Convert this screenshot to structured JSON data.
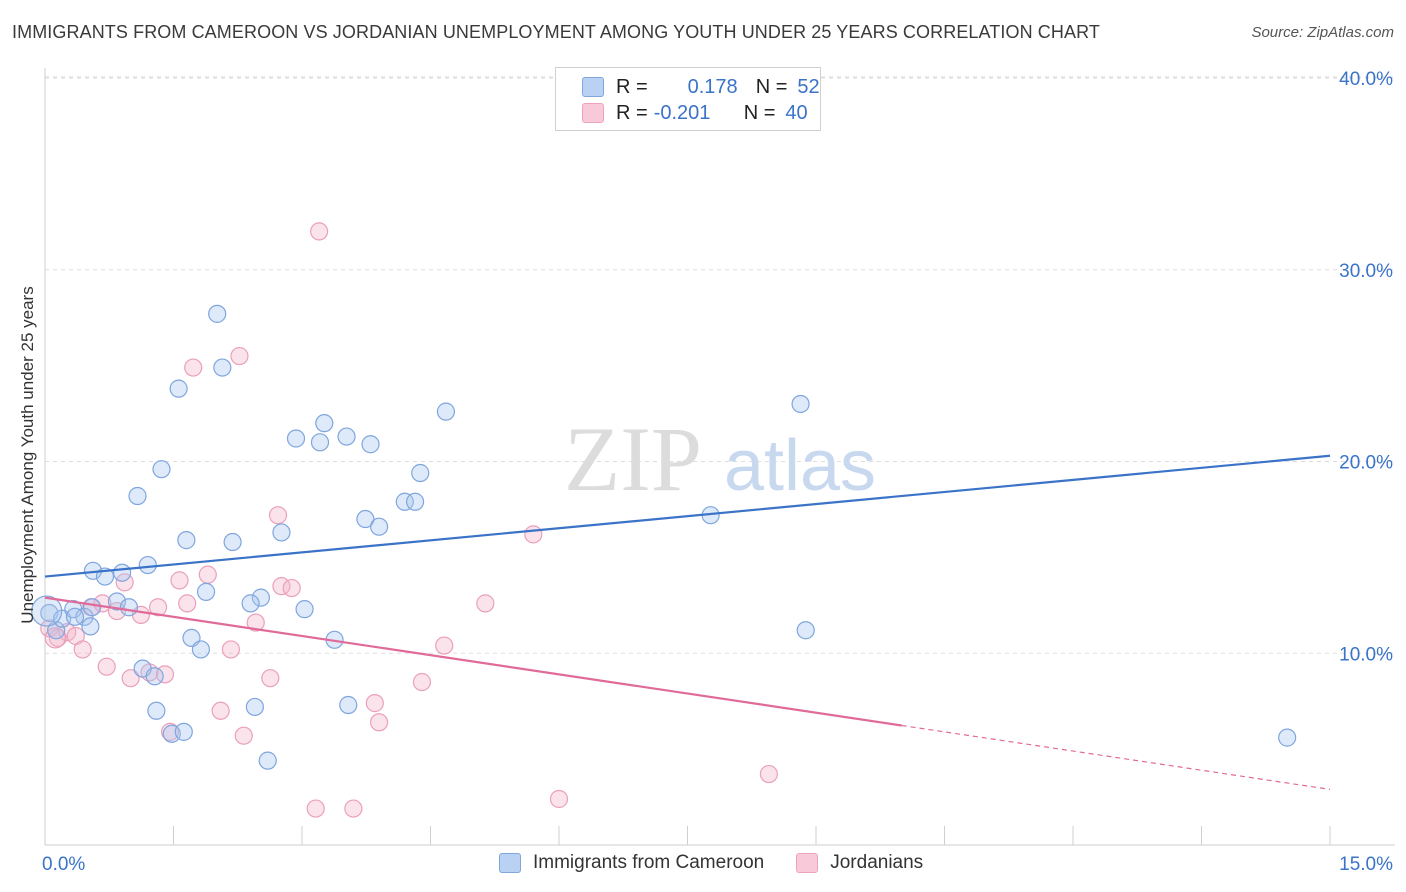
{
  "header": {
    "title": "IMMIGRANTS FROM CAMEROON VS JORDANIAN UNEMPLOYMENT AMONG YOUTH UNDER 25 YEARS CORRELATION CHART",
    "source": "Source: ZipAtlas.com"
  },
  "watermark": {
    "zip": "ZIP",
    "atlas": "atlas"
  },
  "legend": {
    "rows": [
      {
        "r_label": "R =",
        "r_value": "0.178",
        "n_label": "N =",
        "n_value": "52"
      },
      {
        "r_label": "R =",
        "r_value": "-0.201",
        "n_label": "N =",
        "n_value": "40"
      }
    ]
  },
  "bottom_legend": {
    "series1": "Immigrants from Cameroon",
    "series2": "Jordanians"
  },
  "chart_data": {
    "type": "scatter",
    "title": "IMMIGRANTS FROM CAMEROON VS JORDANIAN UNEMPLOYMENT AMONG YOUTH UNDER 25 YEARS CORRELATION CHART",
    "xlabel": "",
    "ylabel": "Unemployment Among Youth under 25 years",
    "xlim": [
      0,
      15
    ],
    "ylim": [
      0,
      40
    ],
    "x_tick_labels": [
      "0.0%",
      "15.0%"
    ],
    "y_tick_labels": [
      "10.0%",
      "20.0%",
      "30.0%",
      "40.0%"
    ],
    "y_ticks": [
      10,
      20,
      30,
      40
    ],
    "grid": true,
    "colors": {
      "blue": "#3a73c8",
      "blue_fill": "#a9c6ee",
      "pink": "#e06a98",
      "pink_fill": "#f4b6cb"
    },
    "series": [
      {
        "name": "Immigrants from Cameroon",
        "color": "#3a73c8",
        "R": 0.178,
        "N": 52,
        "trend": {
          "x": [
            0,
            15
          ],
          "y": [
            14.0,
            20.3
          ]
        },
        "points": [
          [
            0.05,
            12.1
          ],
          [
            0.13,
            11.2
          ],
          [
            0.2,
            11.8
          ],
          [
            0.33,
            12.3
          ],
          [
            0.46,
            11.9
          ],
          [
            0.53,
            11.4
          ],
          [
            0.56,
            14.3
          ],
          [
            0.7,
            14.0
          ],
          [
            0.84,
            12.7
          ],
          [
            0.9,
            14.2
          ],
          [
            0.98,
            12.4
          ],
          [
            1.08,
            18.2
          ],
          [
            1.2,
            14.6
          ],
          [
            1.14,
            9.2
          ],
          [
            1.28,
            8.8
          ],
          [
            1.3,
            7.0
          ],
          [
            1.36,
            19.6
          ],
          [
            1.48,
            5.8
          ],
          [
            1.56,
            23.8
          ],
          [
            1.65,
            15.9
          ],
          [
            1.71,
            10.8
          ],
          [
            1.82,
            10.2
          ],
          [
            1.88,
            13.2
          ],
          [
            2.01,
            27.7
          ],
          [
            2.07,
            24.9
          ],
          [
            2.19,
            15.8
          ],
          [
            2.45,
            7.2
          ],
          [
            2.52,
            12.9
          ],
          [
            2.6,
            4.4
          ],
          [
            2.76,
            16.3
          ],
          [
            2.93,
            21.2
          ],
          [
            3.03,
            12.3
          ],
          [
            3.21,
            21.0
          ],
          [
            3.26,
            22.0
          ],
          [
            3.38,
            10.7
          ],
          [
            3.52,
            21.3
          ],
          [
            3.54,
            7.3
          ],
          [
            3.74,
            17.0
          ],
          [
            3.8,
            20.9
          ],
          [
            3.9,
            16.6
          ],
          [
            4.2,
            17.9
          ],
          [
            4.32,
            17.9
          ],
          [
            4.38,
            19.4
          ],
          [
            4.68,
            22.6
          ],
          [
            7.77,
            17.2
          ],
          [
            8.82,
            23.0
          ],
          [
            8.88,
            11.2
          ],
          [
            14.5,
            5.6
          ]
        ]
      },
      {
        "name": "Jordanians",
        "color": "#e06a98",
        "R": -0.201,
        "N": 40,
        "trend": {
          "x": [
            0,
            15
          ],
          "y": [
            12.9,
            2.9
          ],
          "solid_until_x": 10.0
        },
        "points": [
          [
            0.05,
            11.3
          ],
          [
            0.15,
            10.8
          ],
          [
            0.26,
            11.1
          ],
          [
            0.36,
            10.9
          ],
          [
            0.44,
            10.2
          ],
          [
            0.54,
            12.4
          ],
          [
            0.67,
            12.6
          ],
          [
            0.72,
            9.3
          ],
          [
            0.84,
            12.2
          ],
          [
            0.93,
            13.7
          ],
          [
            1.0,
            8.7
          ],
          [
            1.12,
            12.0
          ],
          [
            1.22,
            9.0
          ],
          [
            1.32,
            12.4
          ],
          [
            1.4,
            8.9
          ],
          [
            1.46,
            5.9
          ],
          [
            1.57,
            13.8
          ],
          [
            1.66,
            12.6
          ],
          [
            1.73,
            24.9
          ],
          [
            1.9,
            14.1
          ],
          [
            2.05,
            7.0
          ],
          [
            2.17,
            10.2
          ],
          [
            2.27,
            25.5
          ],
          [
            2.32,
            5.7
          ],
          [
            2.46,
            11.6
          ],
          [
            2.63,
            8.7
          ],
          [
            2.72,
            17.2
          ],
          [
            2.76,
            13.5
          ],
          [
            2.88,
            13.4
          ],
          [
            3.16,
            1.9
          ],
          [
            3.2,
            32.0
          ],
          [
            3.6,
            1.9
          ],
          [
            3.85,
            7.4
          ],
          [
            3.9,
            6.4
          ],
          [
            4.4,
            8.5
          ],
          [
            4.66,
            10.4
          ],
          [
            5.14,
            12.6
          ],
          [
            5.7,
            16.2
          ],
          [
            6.0,
            2.4
          ],
          [
            8.45,
            3.7
          ]
        ]
      }
    ]
  }
}
